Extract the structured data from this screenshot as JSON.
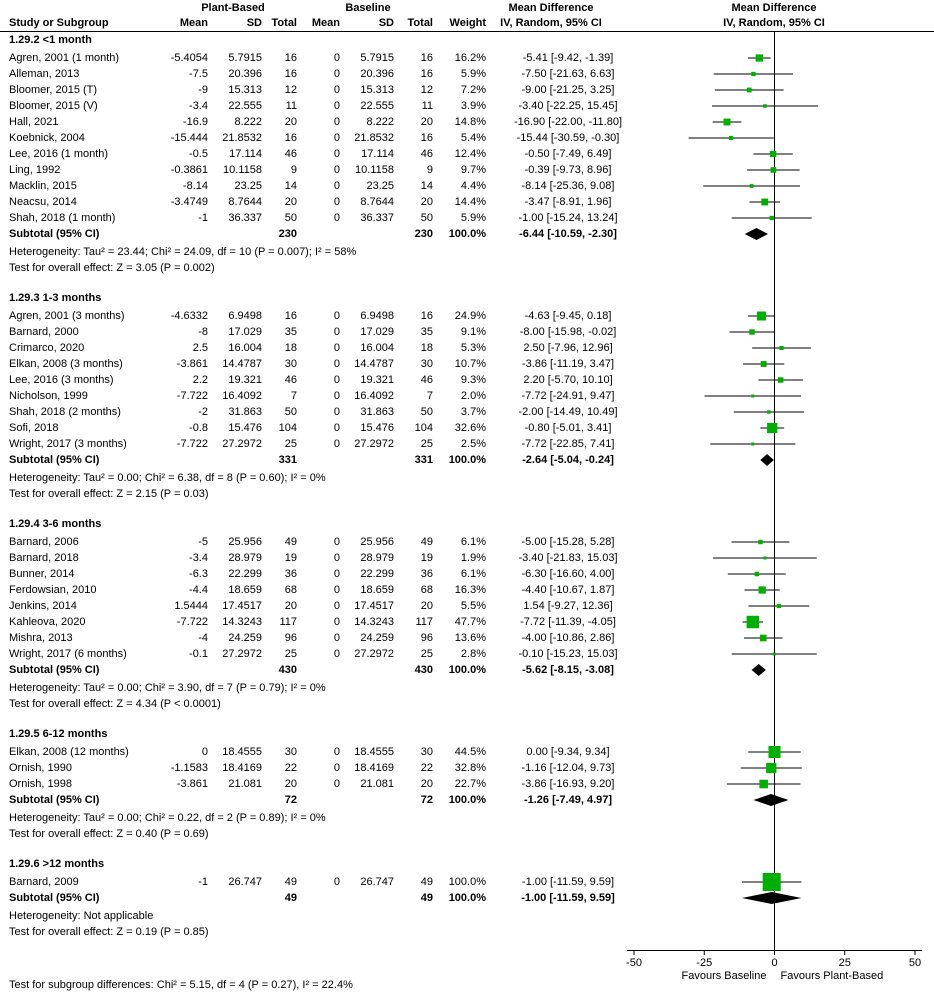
{
  "chart_data": {
    "type": "forest",
    "headers": {
      "plant_based": "Plant-Based",
      "baseline": "Baseline",
      "md": "Mean Difference",
      "md_method": "IV, Random, 95% CI",
      "plot": "Mean Difference",
      "plot_method": "IV, Random, 95% CI",
      "study": "Study or Subgroup",
      "pb_mean": "Mean",
      "pb_sd": "SD",
      "pb_total": "Total",
      "bl_mean": "Mean",
      "bl_sd": "SD",
      "bl_total": "Total",
      "weight": "Weight"
    },
    "color": "#00b000",
    "groups": [
      {
        "title": "1.29.2 <1 month",
        "studies": [
          {
            "name": "Agren, 2001 (1 month)",
            "pb": [
              -5.4054,
              5.7915,
              16
            ],
            "bl": [
              0,
              5.7915,
              16
            ],
            "weight": {
              "value": 16.2,
              "label": "16.2%"
            },
            "md": -5.41,
            "ci": [
              -9.42,
              -1.39
            ],
            "md_label": "-5.41 [-9.42, -1.39]"
          },
          {
            "name": "Alleman, 2013",
            "pb": [
              -7.5,
              20.396,
              16
            ],
            "bl": [
              0,
              20.396,
              16
            ],
            "weight": {
              "value": 5.9,
              "label": "5.9%"
            },
            "md": -7.5,
            "ci": [
              -21.63,
              6.63
            ],
            "md_label": "-7.50 [-21.63, 6.63]"
          },
          {
            "name": "Bloomer, 2015 (T)",
            "pb": [
              -9,
              15.313,
              12
            ],
            "bl": [
              0,
              15.313,
              12
            ],
            "weight": {
              "value": 7.2,
              "label": "7.2%"
            },
            "md": -9,
            "ci": [
              -21.25,
              3.25
            ],
            "md_label": "-9.00 [-21.25, 3.25]"
          },
          {
            "name": "Bloomer, 2015 (V)",
            "pb": [
              -3.4,
              22.555,
              11
            ],
            "bl": [
              0,
              22.555,
              11
            ],
            "weight": {
              "value": 3.9,
              "label": "3.9%"
            },
            "md": -3.4,
            "ci": [
              -22.25,
              15.45
            ],
            "md_label": "-3.40 [-22.25, 15.45]"
          },
          {
            "name": "Hall, 2021",
            "pb": [
              -16.9,
              8.222,
              20
            ],
            "bl": [
              0,
              8.222,
              20
            ],
            "weight": {
              "value": 14.8,
              "label": "14.8%"
            },
            "md": -16.9,
            "ci": [
              -22,
              -11.8
            ],
            "md_label": "-16.90 [-22.00, -11.80]"
          },
          {
            "name": "Koebnick, 2004",
            "pb": [
              -15.444,
              21.8532,
              16
            ],
            "bl": [
              0,
              21.8532,
              16
            ],
            "weight": {
              "value": 5.4,
              "label": "5.4%"
            },
            "md": -15.44,
            "ci": [
              -30.59,
              -0.3
            ],
            "md_label": "-15.44 [-30.59, -0.30]"
          },
          {
            "name": "Lee, 2016 (1 month)",
            "pb": [
              -0.5,
              17.114,
              46
            ],
            "bl": [
              0,
              17.114,
              46
            ],
            "weight": {
              "value": 12.4,
              "label": "12.4%"
            },
            "md": -0.5,
            "ci": [
              -7.49,
              6.49
            ],
            "md_label": "-0.50 [-7.49, 6.49]"
          },
          {
            "name": "Ling, 1992",
            "pb": [
              -0.3861,
              10.1158,
              9
            ],
            "bl": [
              0,
              10.1158,
              9
            ],
            "weight": {
              "value": 9.7,
              "label": "9.7%"
            },
            "md": -0.39,
            "ci": [
              -9.73,
              8.96
            ],
            "md_label": "-0.39 [-9.73, 8.96]"
          },
          {
            "name": "Macklin, 2015",
            "pb": [
              -8.14,
              23.25,
              14
            ],
            "bl": [
              0,
              23.25,
              14
            ],
            "weight": {
              "value": 4.4,
              "label": "4.4%"
            },
            "md": -8.14,
            "ci": [
              -25.36,
              9.08
            ],
            "md_label": "-8.14 [-25.36, 9.08]"
          },
          {
            "name": "Neacsu, 2014",
            "pb": [
              -3.4749,
              8.7644,
              20
            ],
            "bl": [
              0,
              8.7644,
              20
            ],
            "weight": {
              "value": 14.4,
              "label": "14.4%"
            },
            "md": -3.47,
            "ci": [
              -8.91,
              1.96
            ],
            "md_label": "-3.47 [-8.91, 1.96]"
          },
          {
            "name": "Shah, 2018 (1 month)",
            "pb": [
              -1,
              36.337,
              50
            ],
            "bl": [
              0,
              36.337,
              50
            ],
            "weight": {
              "value": 5.9,
              "label": "5.9%"
            },
            "md": -1,
            "ci": [
              -15.24,
              13.24
            ],
            "md_label": "-1.00 [-15.24, 13.24]"
          }
        ],
        "subtotal": {
          "label": "Subtotal (95% CI)",
          "pb_total": 230,
          "bl_total": 230,
          "weight": {
            "value": 100,
            "label": "100.0%"
          },
          "md": -6.44,
          "ci": [
            -10.59,
            -2.3
          ],
          "md_label": "-6.44 [-10.59, -2.30]"
        },
        "heterogeneity": "Heterogeneity: Tau² = 23.44; Chi² = 24.09, df = 10 (P = 0.007); I² = 58%",
        "overall": "Test for overall effect: Z = 3.05 (P = 0.002)"
      },
      {
        "title": "1.29.3 1-3 months",
        "studies": [
          {
            "name": "Agren, 2001 (3 months)",
            "pb": [
              -4.6332,
              6.9498,
              16
            ],
            "bl": [
              0,
              6.9498,
              16
            ],
            "weight": {
              "value": 24.9,
              "label": "24.9%"
            },
            "md": -4.63,
            "ci": [
              -9.45,
              0.18
            ],
            "md_label": "-4.63 [-9.45, 0.18]"
          },
          {
            "name": "Barnard, 2000",
            "pb": [
              -8,
              17.029,
              35
            ],
            "bl": [
              0,
              17.029,
              35
            ],
            "weight": {
              "value": 9.1,
              "label": "9.1%"
            },
            "md": -8,
            "ci": [
              -15.98,
              -0.02
            ],
            "md_label": "-8.00 [-15.98, -0.02]"
          },
          {
            "name": "Crimarco, 2020",
            "pb": [
              2.5,
              16.004,
              18
            ],
            "bl": [
              0,
              16.004,
              18
            ],
            "weight": {
              "value": 5.3,
              "label": "5.3%"
            },
            "md": 2.5,
            "ci": [
              -7.96,
              12.96
            ],
            "md_label": "2.50 [-7.96, 12.96]"
          },
          {
            "name": "Elkan, 2008 (3 months)",
            "pb": [
              -3.861,
              14.4787,
              30
            ],
            "bl": [
              0,
              14.4787,
              30
            ],
            "weight": {
              "value": 10.7,
              "label": "10.7%"
            },
            "md": -3.86,
            "ci": [
              -11.19,
              3.47
            ],
            "md_label": "-3.86 [-11.19, 3.47]"
          },
          {
            "name": "Lee, 2016 (3 months)",
            "pb": [
              2.2,
              19.321,
              46
            ],
            "bl": [
              0,
              19.321,
              46
            ],
            "weight": {
              "value": 9.3,
              "label": "9.3%"
            },
            "md": 2.2,
            "ci": [
              -5.7,
              10.1
            ],
            "md_label": "2.20 [-5.70, 10.10]"
          },
          {
            "name": "Nicholson, 1999",
            "pb": [
              -7.722,
              16.4092,
              7
            ],
            "bl": [
              0,
              16.4092,
              7
            ],
            "weight": {
              "value": 2.0,
              "label": "2.0%"
            },
            "md": -7.72,
            "ci": [
              -24.91,
              9.47
            ],
            "md_label": "-7.72 [-24.91, 9.47]"
          },
          {
            "name": "Shah, 2018 (2 months)",
            "pb": [
              -2,
              31.863,
              50
            ],
            "bl": [
              0,
              31.863,
              50
            ],
            "weight": {
              "value": 3.7,
              "label": "3.7%"
            },
            "md": -2,
            "ci": [
              -14.49,
              10.49
            ],
            "md_label": "-2.00 [-14.49, 10.49]"
          },
          {
            "name": "Sofi, 2018",
            "pb": [
              -0.8,
              15.476,
              104
            ],
            "bl": [
              0,
              15.476,
              104
            ],
            "weight": {
              "value": 32.6,
              "label": "32.6%"
            },
            "md": -0.8,
            "ci": [
              -5.01,
              3.41
            ],
            "md_label": "-0.80 [-5.01, 3.41]"
          },
          {
            "name": "Wright, 2017 (3 months)",
            "pb": [
              -7.722,
              27.2972,
              25
            ],
            "bl": [
              0,
              27.2972,
              25
            ],
            "weight": {
              "value": 2.5,
              "label": "2.5%"
            },
            "md": -7.72,
            "ci": [
              -22.85,
              7.41
            ],
            "md_label": "-7.72 [-22.85, 7.41]"
          }
        ],
        "subtotal": {
          "label": "Subtotal (95% CI)",
          "pb_total": 331,
          "bl_total": 331,
          "weight": {
            "value": 100,
            "label": "100.0%"
          },
          "md": -2.64,
          "ci": [
            -5.04,
            -0.24
          ],
          "md_label": "-2.64 [-5.04, -0.24]"
        },
        "heterogeneity": "Heterogeneity: Tau² = 0.00; Chi² = 6.38, df = 8 (P = 0.60); I² = 0%",
        "overall": "Test for overall effect: Z = 2.15 (P = 0.03)"
      },
      {
        "title": "1.29.4 3-6 months",
        "studies": [
          {
            "name": "Barnard, 2006",
            "pb": [
              -5,
              25.956,
              49
            ],
            "bl": [
              0,
              25.956,
              49
            ],
            "weight": {
              "value": 6.1,
              "label": "6.1%"
            },
            "md": -5,
            "ci": [
              -15.28,
              5.28
            ],
            "md_label": "-5.00 [-15.28, 5.28]"
          },
          {
            "name": "Barnard, 2018",
            "pb": [
              -3.4,
              28.979,
              19
            ],
            "bl": [
              0,
              28.979,
              19
            ],
            "weight": {
              "value": 1.9,
              "label": "1.9%"
            },
            "md": -3.4,
            "ci": [
              -21.83,
              15.03
            ],
            "md_label": "-3.40 [-21.83, 15.03]"
          },
          {
            "name": "Bunner, 2014",
            "pb": [
              -6.3,
              22.299,
              36
            ],
            "bl": [
              0,
              22.299,
              36
            ],
            "weight": {
              "value": 6.1,
              "label": "6.1%"
            },
            "md": -6.3,
            "ci": [
              -16.6,
              4
            ],
            "md_label": "-6.30 [-16.60, 4.00]"
          },
          {
            "name": "Ferdowsian, 2010",
            "pb": [
              -4.4,
              18.659,
              68
            ],
            "bl": [
              0,
              18.659,
              68
            ],
            "weight": {
              "value": 16.3,
              "label": "16.3%"
            },
            "md": -4.4,
            "ci": [
              -10.67,
              1.87
            ],
            "md_label": "-4.40 [-10.67, 1.87]"
          },
          {
            "name": "Jenkins, 2014",
            "pb": [
              1.5444,
              17.4517,
              20
            ],
            "bl": [
              0,
              17.4517,
              20
            ],
            "weight": {
              "value": 5.5,
              "label": "5.5%"
            },
            "md": 1.54,
            "ci": [
              -9.27,
              12.36
            ],
            "md_label": "1.54 [-9.27, 12.36]"
          },
          {
            "name": "Kahleova, 2020",
            "pb": [
              -7.722,
              14.3243,
              117
            ],
            "bl": [
              0,
              14.3243,
              117
            ],
            "weight": {
              "value": 47.7,
              "label": "47.7%"
            },
            "md": -7.72,
            "ci": [
              -11.39,
              -4.05
            ],
            "md_label": "-7.72 [-11.39, -4.05]"
          },
          {
            "name": "Mishra, 2013",
            "pb": [
              -4,
              24.259,
              96
            ],
            "bl": [
              0,
              24.259,
              96
            ],
            "weight": {
              "value": 13.6,
              "label": "13.6%"
            },
            "md": -4,
            "ci": [
              -10.86,
              2.86
            ],
            "md_label": "-4.00 [-10.86, 2.86]"
          },
          {
            "name": "Wright, 2017 (6 months)",
            "pb": [
              -0.1,
              27.2972,
              25
            ],
            "bl": [
              0,
              27.2972,
              25
            ],
            "weight": {
              "value": 2.8,
              "label": "2.8%"
            },
            "md": -0.1,
            "ci": [
              -15.23,
              15.03
            ],
            "md_label": "-0.10 [-15.23, 15.03]"
          }
        ],
        "subtotal": {
          "label": "Subtotal (95% CI)",
          "pb_total": 430,
          "bl_total": 430,
          "weight": {
            "value": 100,
            "label": "100.0%"
          },
          "md": -5.62,
          "ci": [
            -8.15,
            -3.08
          ],
          "md_label": "-5.62 [-8.15, -3.08]"
        },
        "heterogeneity": "Heterogeneity: Tau² = 0.00; Chi² = 3.90, df = 7 (P = 0.79); I² = 0%",
        "overall": "Test for overall effect: Z = 4.34 (P < 0.0001)"
      },
      {
        "title": "1.29.5 6-12 months",
        "studies": [
          {
            "name": "Elkan, 2008 (12 months)",
            "pb": [
              0,
              18.4555,
              30
            ],
            "bl": [
              0,
              18.4555,
              30
            ],
            "weight": {
              "value": 44.5,
              "label": "44.5%"
            },
            "md": 0,
            "ci": [
              -9.34,
              9.34
            ],
            "md_label": "0.00 [-9.34, 9.34]"
          },
          {
            "name": "Ornish, 1990",
            "pb": [
              -1.1583,
              18.4169,
              22
            ],
            "bl": [
              0,
              18.4169,
              22
            ],
            "weight": {
              "value": 32.8,
              "label": "32.8%"
            },
            "md": -1.16,
            "ci": [
              -12.04,
              9.73
            ],
            "md_label": "-1.16 [-12.04, 9.73]"
          },
          {
            "name": "Ornish, 1998",
            "pb": [
              -3.861,
              21.081,
              20
            ],
            "bl": [
              0,
              21.081,
              20
            ],
            "weight": {
              "value": 22.7,
              "label": "22.7%"
            },
            "md": -3.86,
            "ci": [
              -16.93,
              9.2
            ],
            "md_label": "-3.86 [-16.93, 9.20]"
          }
        ],
        "subtotal": {
          "label": "Subtotal (95% CI)",
          "pb_total": 72,
          "bl_total": 72,
          "weight": {
            "value": 100,
            "label": "100.0%"
          },
          "md": -1.26,
          "ci": [
            -7.49,
            4.97
          ],
          "md_label": "-1.26 [-7.49, 4.97]"
        },
        "heterogeneity": "Heterogeneity: Tau² = 0.00; Chi² = 0.22, df = 2 (P = 0.89); I² = 0%",
        "overall": "Test for overall effect: Z = 0.40 (P = 0.69)"
      },
      {
        "title": "1.29.6 >12 months",
        "studies": [
          {
            "name": "Barnard, 2009",
            "pb": [
              -1,
              26.747,
              49
            ],
            "bl": [
              0,
              26.747,
              49
            ],
            "weight": {
              "value": 100,
              "label": "100.0%"
            },
            "md": -1,
            "ci": [
              -11.59,
              9.59
            ],
            "md_label": "-1.00 [-11.59, 9.59]"
          }
        ],
        "subtotal": {
          "label": "Subtotal (95% CI)",
          "pb_total": 49,
          "bl_total": 49,
          "weight": {
            "value": 100,
            "label": "100.0%"
          },
          "md": -1,
          "ci": [
            -11.59,
            9.59
          ],
          "md_label": "-1.00 [-11.59, 9.59]"
        },
        "heterogeneity": "Heterogeneity: Not applicable",
        "overall": "Test for overall effect: Z = 0.19 (P = 0.85)"
      }
    ],
    "xlim": [
      -50,
      50
    ],
    "xticks": [
      -50,
      -25,
      0,
      25,
      50
    ],
    "favours_left": "Favours Baseline",
    "favours_right": "Favours Plant-Based",
    "footer": "Test for subgroup differences: Chi² = 5.15, df = 4 (P = 0.27), I² = 22.4%"
  }
}
